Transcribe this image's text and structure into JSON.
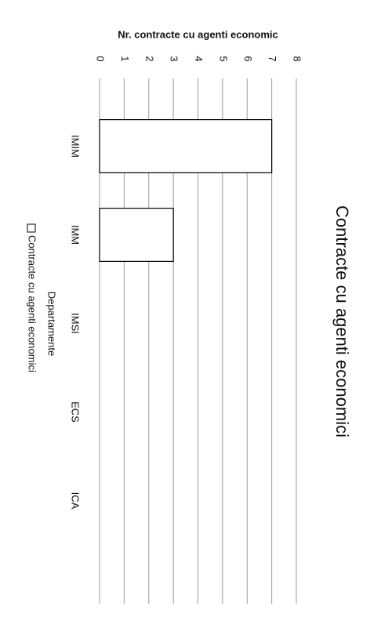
{
  "chart_data": {
    "type": "bar",
    "title": "Contracte cu agenti economici",
    "y_label": "Nr. contracte cu agenti economic",
    "x_label": "Departamente",
    "categories": [
      "IMIM",
      "IMM",
      "IMSI",
      "ECS",
      "ICA"
    ],
    "series": [
      {
        "name": "Contracte cu agenti economici",
        "color": "#ffffff",
        "values": [
          7,
          3,
          0,
          0,
          0
        ]
      }
    ],
    "ylim": [
      0,
      8
    ],
    "yticks": [
      0,
      1,
      2,
      3,
      4,
      5,
      6,
      7,
      8
    ],
    "grid": true,
    "legend": "bottom"
  }
}
